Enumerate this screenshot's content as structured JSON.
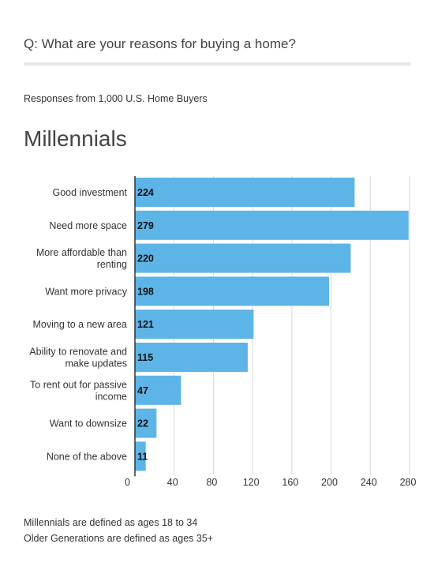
{
  "question": "Q: What are your reasons for buying a home?",
  "subtitle": "Responses from 1,000 U.S. Home Buyers",
  "heading": "Millennials",
  "footnotes": [
    "Millennials are defined as ages 18 to 34",
    "Older Generations are defined as ages 35+"
  ],
  "colors": {
    "bar": "#5db4e6",
    "grid": "#d9d9d9",
    "axis": "#333333"
  },
  "chart_data": {
    "type": "bar",
    "orientation": "horizontal",
    "categories": [
      [
        "Good investment"
      ],
      [
        "Need more space"
      ],
      [
        "More affordable than",
        "renting"
      ],
      [
        "Want more privacy"
      ],
      [
        "Moving to a new area"
      ],
      [
        "Ability to renovate and",
        "make updates"
      ],
      [
        "To rent out for passive",
        "income"
      ],
      [
        "Want to downsize"
      ],
      [
        "None of the above"
      ]
    ],
    "values": [
      224,
      279,
      220,
      198,
      121,
      115,
      47,
      22,
      11
    ],
    "xlim": [
      0,
      280
    ],
    "xticks": [
      0,
      40,
      80,
      120,
      160,
      200,
      240,
      280
    ],
    "grid": true,
    "data_labels": true
  }
}
